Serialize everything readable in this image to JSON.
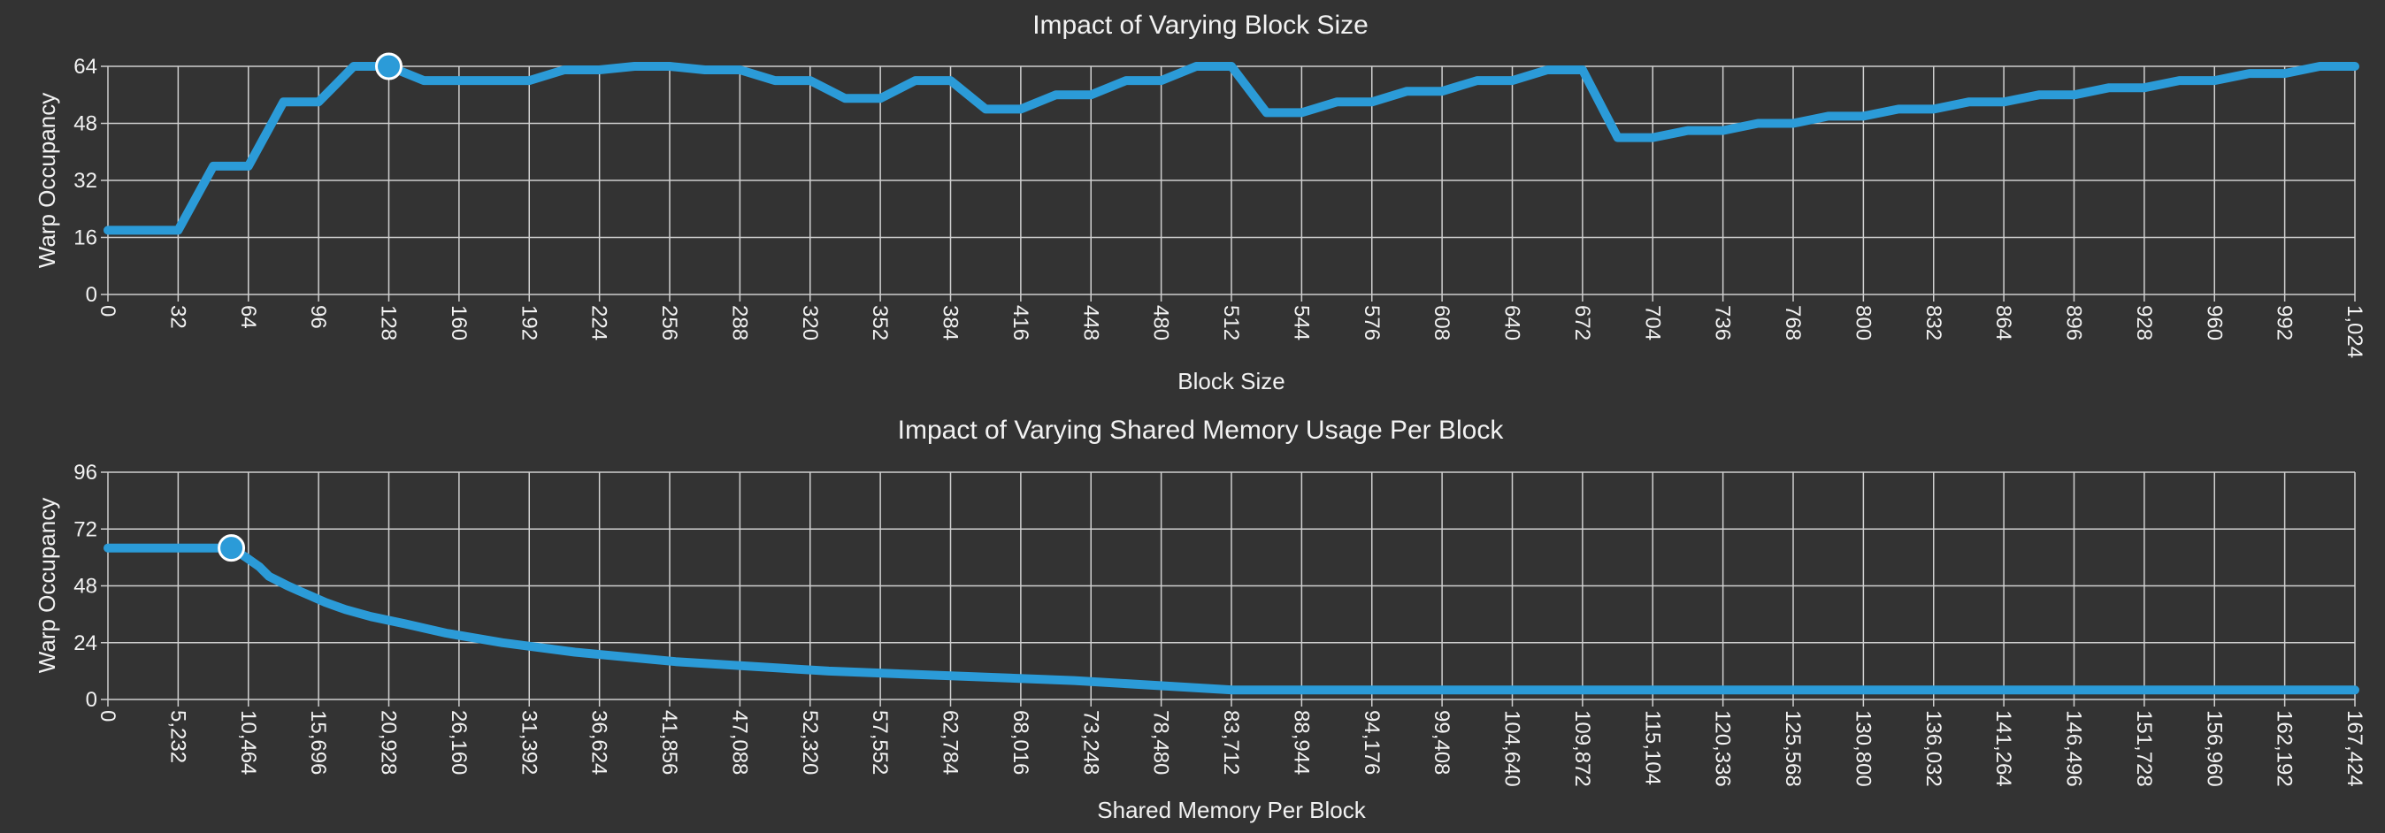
{
  "chart_data": [
    {
      "type": "line",
      "title": "Impact of Varying Block Size",
      "xlabel": "Block Size",
      "ylabel": "Warp Occupancy",
      "xlim": [
        0,
        1024
      ],
      "ylim": [
        0,
        64
      ],
      "x_ticks": [
        0,
        32,
        64,
        96,
        128,
        160,
        192,
        224,
        256,
        288,
        320,
        352,
        384,
        416,
        448,
        480,
        512,
        544,
        576,
        608,
        640,
        672,
        704,
        736,
        768,
        800,
        832,
        864,
        896,
        928,
        960,
        992,
        1024
      ],
      "x_tick_labels": [
        "0",
        "32",
        "64",
        "96",
        "128",
        "160",
        "192",
        "224",
        "256",
        "288",
        "320",
        "352",
        "384",
        "416",
        "448",
        "480",
        "512",
        "544",
        "576",
        "608",
        "640",
        "672",
        "704",
        "736",
        "768",
        "800",
        "832",
        "864",
        "896",
        "928",
        "960",
        "992",
        "1,024"
      ],
      "y_ticks": [
        0,
        16,
        32,
        48,
        64
      ],
      "y_tick_labels": [
        "0",
        "16",
        "32",
        "48",
        "64"
      ],
      "grid": true,
      "color": "#2b9bd8",
      "series": [
        {
          "x": [
            0,
            32,
            48,
            64,
            80,
            96,
            112,
            128,
            144,
            160,
            176,
            192,
            208,
            224,
            240,
            256,
            272,
            288,
            304,
            320,
            336,
            352,
            368,
            384,
            400,
            416,
            432,
            448,
            464,
            480,
            496,
            512,
            528,
            544,
            560,
            576,
            592,
            608,
            624,
            640,
            656,
            672,
            688,
            704,
            720,
            736,
            752,
            768,
            784,
            800,
            816,
            832,
            848,
            864,
            880,
            896,
            912,
            928,
            944,
            960,
            976,
            992,
            1008,
            1024
          ],
          "values": [
            18,
            18,
            36,
            36,
            54,
            54,
            64,
            64,
            60,
            60,
            60,
            60,
            63,
            63,
            64,
            64,
            63,
            63,
            60,
            60,
            55,
            55,
            60,
            60,
            52,
            52,
            56,
            56,
            60,
            60,
            64,
            64,
            51,
            51,
            54,
            54,
            57,
            57,
            60,
            60,
            63,
            63,
            44,
            44,
            46,
            46,
            48,
            48,
            50,
            50,
            52,
            52,
            54,
            54,
            56,
            56,
            58,
            58,
            60,
            60,
            62,
            62,
            64,
            64
          ],
          "step": true
        }
      ],
      "marker": {
        "x": 128,
        "y": 64
      }
    },
    {
      "type": "line",
      "title": "Impact of Varying Shared Memory Usage Per Block",
      "xlabel": "Shared Memory Per Block",
      "ylabel": "Warp Occupancy",
      "xlim": [
        0,
        167424
      ],
      "ylim": [
        0,
        96
      ],
      "x_ticks": [
        0,
        5232,
        10464,
        15696,
        20928,
        26160,
        31392,
        36624,
        41856,
        47088,
        52320,
        57552,
        62784,
        68016,
        73248,
        78480,
        83712,
        88944,
        94176,
        99408,
        104640,
        109872,
        115104,
        120336,
        125568,
        130800,
        136032,
        141264,
        146496,
        151728,
        156960,
        162192,
        167424
      ],
      "x_tick_labels": [
        "0",
        "5,232",
        "10,464",
        "15,696",
        "20,928",
        "26,160",
        "31,392",
        "36,624",
        "41,856",
        "47,088",
        "52,320",
        "57,552",
        "62,784",
        "68,016",
        "73,248",
        "78,480",
        "83,712",
        "88,944",
        "94,176",
        "99,408",
        "104,640",
        "109,872",
        "115,104",
        "120,336",
        "125,568",
        "130,800",
        "136,032",
        "141,264",
        "146,496",
        "151,728",
        "156,960",
        "162,192",
        "167,424"
      ],
      "y_ticks": [
        0,
        24,
        48,
        72,
        96
      ],
      "y_tick_labels": [
        "0",
        "24",
        "48",
        "72",
        "96"
      ],
      "grid": true,
      "color": "#2b9bd8",
      "series": [
        {
          "x": [
            0,
            9200,
            10300,
            11300,
            12000,
            12700,
            13400,
            14200,
            15000,
            16200,
            17700,
            19600,
            22100,
            25200,
            29400,
            34800,
            42300,
            53700,
            72000,
            83800,
            167424
          ],
          "values": [
            64,
            64,
            60,
            56,
            52,
            50,
            48,
            46,
            44,
            41,
            38,
            35,
            32,
            28,
            24,
            20,
            16,
            12,
            8,
            4,
            4
          ],
          "step": true
        }
      ],
      "marker": {
        "x": 9200,
        "y": 64
      }
    }
  ]
}
